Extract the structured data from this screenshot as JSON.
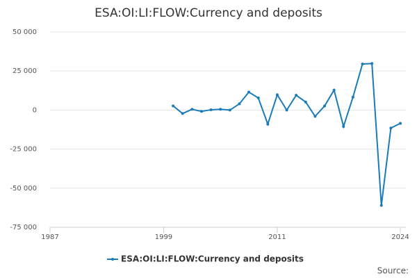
{
  "chart_data": {
    "type": "line",
    "title": "ESA:OI:LI:FLOW:Currency and deposits",
    "x": [
      2000,
      2001,
      2002,
      2003,
      2004,
      2005,
      2006,
      2007,
      2008,
      2009,
      2010,
      2011,
      2012,
      2013,
      2014,
      2015,
      2016,
      2017,
      2018,
      2019,
      2020,
      2021,
      2022,
      2023,
      2024
    ],
    "series": [
      {
        "name": "ESA:OI:LI:FLOW:Currency and deposits",
        "color": "#1a7bb9",
        "values": [
          2700,
          -2200,
          500,
          -800,
          200,
          500,
          0,
          4000,
          11500,
          7800,
          -9000,
          9800,
          0,
          9500,
          5200,
          -4000,
          2600,
          12800,
          -10500,
          8300,
          29500,
          29800,
          -61000,
          -11500,
          -8500
        ]
      }
    ],
    "xlim": [
      1987,
      2024
    ],
    "xticks": [
      1987,
      1999,
      2011,
      2024
    ],
    "ylim": [
      -75000,
      50000
    ],
    "yticks": [
      {
        "value": -75000,
        "label": "-75 000"
      },
      {
        "value": -50000,
        "label": "-50 000"
      },
      {
        "value": -25000,
        "label": "-25 000"
      },
      0,
      {
        "value": 25000,
        "label": "25 000"
      },
      {
        "value": 50000,
        "label": "50 000"
      }
    ],
    "grid": true,
    "legend": "bottom",
    "source": "Source:"
  }
}
